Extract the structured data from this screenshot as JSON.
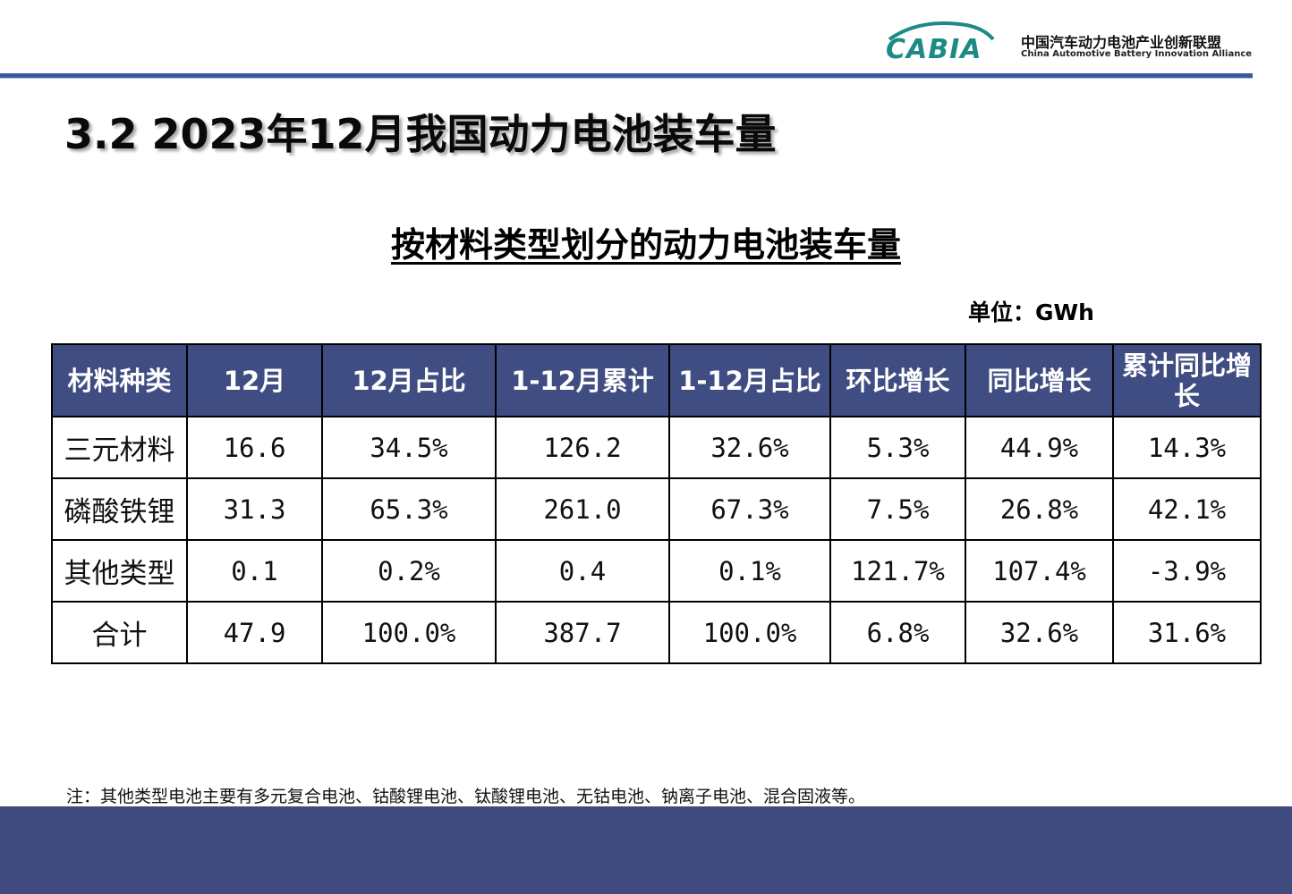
{
  "header": {
    "logo_text": "CABIA",
    "org_name_cn": "中国汽车动力电池产业创新联盟",
    "org_name_en": "China Automotive Battery Innovation Alliance"
  },
  "title": "3.2  2023年12月我国动力电池装车量",
  "table_title": "按材料类型划分的动力电池装车量",
  "unit": "单位：GWh",
  "table": {
    "columns": [
      "材料种类",
      "12月",
      "12月占比",
      "1-12月累计",
      "1-12月占比",
      "环比增长",
      "同比增长",
      "累计同比增长"
    ],
    "rows": [
      [
        "三元材料",
        "16.6",
        "34.5%",
        "126.2",
        "32.6%",
        "5.3%",
        "44.9%",
        "14.3%"
      ],
      [
        "磷酸铁锂",
        "31.3",
        "65.3%",
        "261.0",
        "67.3%",
        "7.5%",
        "26.8%",
        "42.1%"
      ],
      [
        "其他类型",
        "0.1",
        "0.2%",
        "0.4",
        "0.1%",
        "121.7%",
        "107.4%",
        "-3.9%"
      ],
      [
        "合计",
        "47.9",
        "100.0%",
        "387.7",
        "100.0%",
        "6.8%",
        "32.6%",
        "31.6%"
      ]
    ]
  },
  "note": "注：其他类型电池主要有多元复合电池、钴酸锂电池、钛酸锂电池、无钴电池、钠离子电池、混合固液等。",
  "colors": {
    "header_fill": "#3f4d82",
    "rule": "#3b5a9a",
    "footer": "#3f4a7e",
    "logo": "#1d8a86"
  }
}
